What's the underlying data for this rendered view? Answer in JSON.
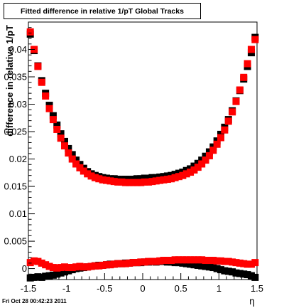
{
  "title": "Fitted difference in relative 1/pT  Global Tracks",
  "footer": {
    "timestamp": "Fri Oct 28 00:42:23 2011"
  },
  "chart_data": {
    "type": "scatter",
    "title": "Fitted difference in relative 1/pT  Global Tracks",
    "xlabel": "η",
    "ylabel": "difference in relative 1/pT",
    "xlim": [
      -1.5,
      1.5
    ],
    "ylim": [
      -0.002,
      0.045
    ],
    "xticks": [
      "-1.5",
      "-1",
      "-0.5",
      "0",
      "0.5",
      "1",
      "1.5"
    ],
    "yticks": [
      "0",
      "0.005",
      "0.01",
      "0.015",
      "0.02",
      "0.025",
      "0.03",
      "0.035",
      "0.04"
    ],
    "grid": false,
    "colors": {
      "black_series": "#000000",
      "red_series": "#ff0000"
    },
    "series": [
      {
        "color": "black",
        "x": [
          -1.475,
          -1.425,
          -1.375,
          -1.325,
          -1.275,
          -1.225,
          -1.175,
          -1.125,
          -1.075,
          -1.025,
          -0.975,
          -0.925,
          -0.875,
          -0.825,
          -0.775,
          -0.725,
          -0.675,
          -0.625,
          -0.575,
          -0.525,
          -0.475,
          -0.425,
          -0.375,
          -0.325,
          -0.275,
          -0.225,
          -0.175,
          -0.125,
          -0.075,
          -0.025,
          0.025,
          0.075,
          0.125,
          0.175,
          0.225,
          0.275,
          0.325,
          0.375,
          0.425,
          0.475,
          0.525,
          0.575,
          0.625,
          0.675,
          0.725,
          0.775,
          0.825,
          0.875,
          0.925,
          0.975,
          1.025,
          1.075,
          1.125,
          1.175,
          1.225,
          1.275,
          1.325,
          1.375,
          1.425,
          1.475
        ],
        "y": [
          0.0428,
          0.0398,
          0.037,
          0.0343,
          0.032,
          0.0298,
          0.0279,
          0.0262,
          0.0246,
          0.0232,
          0.0219,
          0.0208,
          0.0198,
          0.019,
          0.0183,
          0.0177,
          0.0173,
          0.017,
          0.0168,
          0.0166,
          0.0165,
          0.0164,
          0.0164,
          0.0163,
          0.0163,
          0.0163,
          0.0163,
          0.0163,
          0.0164,
          0.0164,
          0.0165,
          0.0165,
          0.0166,
          0.0166,
          0.0167,
          0.0168,
          0.0169,
          0.017,
          0.0172,
          0.0174,
          0.0176,
          0.0179,
          0.0182,
          0.0187,
          0.0192,
          0.0198,
          0.0205,
          0.0213,
          0.0222,
          0.0233,
          0.0245,
          0.0258,
          0.0272,
          0.0288,
          0.0306,
          0.0325,
          0.0346,
          0.0369,
          0.0394,
          0.0422
        ]
      },
      {
        "color": "red",
        "x": [
          -1.475,
          -1.425,
          -1.375,
          -1.325,
          -1.275,
          -1.225,
          -1.175,
          -1.125,
          -1.075,
          -1.025,
          -0.975,
          -0.925,
          -0.875,
          -0.825,
          -0.775,
          -0.725,
          -0.675,
          -0.625,
          -0.575,
          -0.525,
          -0.475,
          -0.425,
          -0.375,
          -0.325,
          -0.275,
          -0.225,
          -0.175,
          -0.125,
          -0.075,
          -0.025,
          0.025,
          0.075,
          0.125,
          0.175,
          0.225,
          0.275,
          0.325,
          0.375,
          0.425,
          0.475,
          0.525,
          0.575,
          0.625,
          0.675,
          0.725,
          0.775,
          0.825,
          0.875,
          0.925,
          0.975,
          1.025,
          1.075,
          1.125,
          1.175,
          1.225,
          1.275,
          1.325,
          1.375,
          1.425,
          1.475
        ],
        "y": [
          0.0432,
          0.04,
          0.0369,
          0.034,
          0.0315,
          0.0292,
          0.0272,
          0.0254,
          0.0238,
          0.0224,
          0.0211,
          0.02,
          0.0191,
          0.0184,
          0.0178,
          0.0173,
          0.0169,
          0.0166,
          0.0164,
          0.0162,
          0.0161,
          0.016,
          0.0159,
          0.0158,
          0.0158,
          0.0157,
          0.0157,
          0.0157,
          0.0157,
          0.0157,
          0.0158,
          0.0158,
          0.0159,
          0.016,
          0.0161,
          0.0162,
          0.0163,
          0.0164,
          0.0166,
          0.0168,
          0.017,
          0.0173,
          0.0176,
          0.018,
          0.0185,
          0.0191,
          0.0198,
          0.0206,
          0.0216,
          0.0227,
          0.0239,
          0.0253,
          0.0269,
          0.0286,
          0.0305,
          0.0326,
          0.0349,
          0.0374,
          0.04,
          0.0418
        ]
      },
      {
        "color": "black",
        "x": [
          -1.475,
          -1.425,
          -1.375,
          -1.325,
          -1.275,
          -1.225,
          -1.175,
          -1.125,
          -1.075,
          -1.025,
          -0.975,
          -0.925,
          -0.875,
          -0.825,
          -0.775,
          -0.725,
          -0.675,
          -0.625,
          -0.575,
          -0.525,
          -0.475,
          -0.425,
          -0.375,
          -0.325,
          -0.275,
          -0.225,
          -0.175,
          -0.125,
          -0.075,
          -0.025,
          0.025,
          0.075,
          0.125,
          0.175,
          0.225,
          0.275,
          0.325,
          0.375,
          0.425,
          0.475,
          0.525,
          0.575,
          0.625,
          0.675,
          0.725,
          0.775,
          0.825,
          0.875,
          0.925,
          0.975,
          1.025,
          1.075,
          1.125,
          1.175,
          1.225,
          1.275,
          1.325,
          1.375,
          1.425,
          1.475
        ],
        "y": [
          -0.0017,
          -0.0016,
          -0.0015,
          -0.0016,
          -0.0014,
          -0.0013,
          -0.0012,
          -0.001,
          -0.0008,
          -0.0006,
          -0.0004,
          -0.0002,
          0.0,
          0.0001,
          0.0002,
          0.0003,
          0.0004,
          0.0005,
          0.0006,
          0.0006,
          0.0007,
          0.0008,
          0.0008,
          0.0009,
          0.0009,
          0.001,
          0.001,
          0.0011,
          0.0011,
          0.0011,
          0.0012,
          0.0012,
          0.0013,
          0.0012,
          0.0013,
          0.0013,
          0.0012,
          0.0012,
          0.0011,
          0.0011,
          0.001,
          0.0009,
          0.0008,
          0.0007,
          0.0006,
          0.0005,
          0.0004,
          0.0003,
          0.0002,
          0.0,
          -0.0002,
          -0.0004,
          -0.0005,
          -0.0006,
          -0.0008,
          -0.0009,
          -0.001,
          -0.0011,
          -0.0013,
          -0.0016
        ]
      },
      {
        "color": "red",
        "x": [
          -1.475,
          -1.425,
          -1.375,
          -1.325,
          -1.275,
          -1.225,
          -1.175,
          -1.125,
          -1.075,
          -1.025,
          -0.975,
          -0.925,
          -0.875,
          -0.825,
          -0.775,
          -0.725,
          -0.675,
          -0.625,
          -0.575,
          -0.525,
          -0.475,
          -0.425,
          -0.375,
          -0.325,
          -0.275,
          -0.225,
          -0.175,
          -0.125,
          -0.075,
          -0.025,
          0.025,
          0.075,
          0.125,
          0.175,
          0.225,
          0.275,
          0.325,
          0.375,
          0.425,
          0.475,
          0.525,
          0.575,
          0.625,
          0.675,
          0.725,
          0.775,
          0.825,
          0.875,
          0.925,
          0.975,
          1.025,
          1.075,
          1.125,
          1.175,
          1.225,
          1.275,
          1.325,
          1.375,
          1.425,
          1.475
        ],
        "y": [
          0.0011,
          0.0014,
          0.0013,
          0.001,
          0.0007,
          0.0004,
          0.0002,
          0.0001,
          0.0002,
          0.0003,
          0.0002,
          0.0002,
          0.0003,
          0.0004,
          0.0003,
          0.0003,
          0.0004,
          0.0005,
          0.0005,
          0.0006,
          0.0007,
          0.0007,
          0.0008,
          0.0009,
          0.0009,
          0.0009,
          0.001,
          0.0011,
          0.0011,
          0.0012,
          0.0012,
          0.0013,
          0.0013,
          0.0013,
          0.0014,
          0.0015,
          0.0015,
          0.0015,
          0.0016,
          0.0016,
          0.0016,
          0.0016,
          0.0016,
          0.0016,
          0.0016,
          0.0016,
          0.0015,
          0.0015,
          0.0015,
          0.0014,
          0.0014,
          0.0013,
          0.0013,
          0.0012,
          0.0011,
          0.001,
          0.0009,
          0.0008,
          0.0008,
          0.0011
        ]
      }
    ]
  }
}
